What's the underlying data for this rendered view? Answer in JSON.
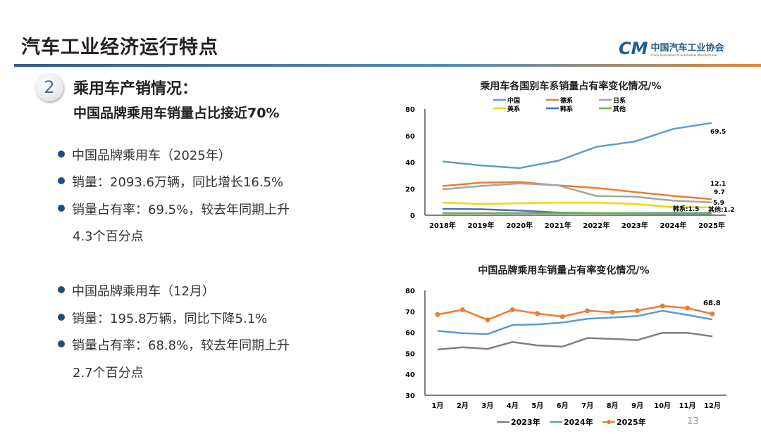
{
  "header": {
    "title": "汽车工业经济运行特点",
    "logo_cn": "中国汽车工业协会",
    "logo_en": "China Association of Automobile Manufacturers",
    "logo_mark": "CM"
  },
  "section": {
    "number": "2",
    "heading": "乘用车产销情况：",
    "subheading": "中国品牌乘用车销量占比接近70%"
  },
  "bullets": [
    {
      "text": "中国品牌乘用车（2025年）"
    },
    {
      "text": "销量：2093.6万辆，同比增长16.5%"
    },
    {
      "text": "销量占有率：69.5%，较去年同期上升",
      "cont": "4.3个百分点"
    },
    {
      "text": "中国品牌乘用车（12月）"
    },
    {
      "text": "销量：195.8万辆，同比下降5.1%"
    },
    {
      "text": "销量占有率：68.8%，较去年同期上升",
      "cont": "2.7个百分点"
    }
  ],
  "page_number": "13",
  "chart_data": [
    {
      "type": "line",
      "title": "乘用车各国别车系销量占有率变化情况/%",
      "ylim": [
        0,
        80
      ],
      "yticks": [
        0,
        20,
        40,
        60,
        80
      ],
      "legend": "top",
      "categories": [
        "2018年",
        "2019年",
        "2020年",
        "2021年",
        "2022年",
        "2023年",
        "2024年",
        "2025年"
      ],
      "series": [
        {
          "name": "中国",
          "color": "#5b9bd5",
          "values": [
            40.5,
            37.5,
            35.5,
            41,
            51.5,
            55.5,
            65,
            69.5
          ]
        },
        {
          "name": "德系",
          "color": "#ed7d31",
          "values": [
            22,
            24.5,
            25,
            22.5,
            20.5,
            17.5,
            14.5,
            12.1
          ]
        },
        {
          "name": "日系",
          "color": "#a5a5a5",
          "values": [
            19.5,
            22,
            24,
            22.5,
            14.5,
            14,
            11,
            9.7
          ]
        },
        {
          "name": "美系",
          "color": "#f2d600",
          "values": [
            9.5,
            8.5,
            9,
            9.5,
            9.5,
            8.5,
            6,
            5.9
          ]
        },
        {
          "name": "韩系",
          "color": "#4472c4",
          "values": [
            4.8,
            4.5,
            3.5,
            2,
            1.6,
            1.5,
            1.6,
            1.5
          ]
        },
        {
          "name": "其他",
          "color": "#70ad47",
          "values": [
            1.5,
            1.5,
            1.5,
            1.5,
            1.5,
            1.3,
            1.2,
            1.2
          ]
        }
      ],
      "labels": [
        "69.5",
        "12.1",
        "9.7",
        "5.9",
        "韩系:1.5",
        "其他:1.2"
      ]
    },
    {
      "type": "line",
      "title": "中国品牌乘用车销量占有率变化情况/%",
      "ylim": [
        30,
        80
      ],
      "yticks": [
        30,
        40,
        50,
        60,
        70,
        80
      ],
      "legend": "bottom",
      "categories": [
        "1月",
        "2月",
        "3月",
        "4月",
        "5月",
        "6月",
        "7月",
        "8月",
        "9月",
        "10月",
        "11月",
        "12月"
      ],
      "series": [
        {
          "name": "2023年",
          "color": "#7f7f7f",
          "values": [
            51.8,
            52.9,
            52.1,
            55.4,
            53.8,
            53.2,
            57.3,
            56.9,
            56.3,
            59.8,
            59.8,
            58.1
          ]
        },
        {
          "name": "2024年",
          "color": "#5b9bd5",
          "values": [
            60.7,
            59.6,
            59.2,
            63.5,
            63.8,
            64.7,
            66.5,
            67.1,
            67.8,
            70.3,
            68.3,
            66.2
          ]
        },
        {
          "name": "2025年",
          "color": "#ed7d31",
          "markers": true,
          "values": [
            68.5,
            70.8,
            66,
            70.8,
            69,
            67.5,
            70.3,
            69.6,
            70.4,
            72.6,
            71.6,
            68.8
          ]
        }
      ],
      "labels": [
        "68.8"
      ]
    }
  ]
}
